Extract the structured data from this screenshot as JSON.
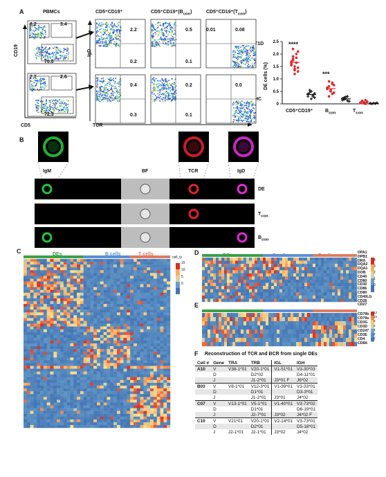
{
  "panels": {
    "a": "A",
    "b": "B",
    "c": "C",
    "d": "D",
    "e": "E",
    "f": "F"
  },
  "flow": {
    "pbmc_title": "PBMCs",
    "cd19_axis": "CD19",
    "cd5_axis": "CD5",
    "igd_axis": "IgD",
    "tcr_axis": "TCR",
    "col_titles": [
      "CD5⁺CD19⁺",
      "CD5⁺CD19⁺(B",
      "CD5⁺CD19⁺(T"
    ],
    "col_subs": [
      "",
      "con",
      ")",
      "con",
      ")"
    ],
    "row_labels": [
      "T1D",
      "HC"
    ],
    "pbmc_t1d": [
      "8.2",
      "3.4",
      "70.0"
    ],
    "pbmc_hc": [
      "7.7",
      "2.6",
      "72.3"
    ],
    "t1d_quads": [
      [
        "",
        "2.2",
        "0.2"
      ],
      [
        "",
        "0.5",
        "0.1"
      ],
      [
        "0.01",
        "0.08",
        ""
      ]
    ],
    "hc_quads": [
      [
        "",
        "0.4",
        "0.3"
      ],
      [
        "",
        "0.2",
        "0.1"
      ],
      [
        "",
        "0.0",
        ""
      ]
    ]
  },
  "scatter": {
    "ylabel": "DE cells (%)",
    "yticks": [
      "0",
      "0.5",
      "1.0",
      "1.5",
      "2.0",
      "2.5"
    ],
    "xcats": [
      "CD5⁺CD19⁺",
      "B",
      "T"
    ],
    "xsubs": [
      "con",
      "con"
    ],
    "sig": [
      "****",
      "***"
    ],
    "chart_data": {
      "type": "scatter",
      "ylim": [
        0,
        2.5
      ],
      "series": [
        {
          "group": "CD5+CD19+ T1D",
          "color": "#e0262a",
          "values": [
            1.6,
            1.8,
            1.5,
            2.0,
            1.3,
            1.7,
            1.9,
            1.4,
            1.65,
            2.1,
            1.55,
            1.75,
            1.2,
            1.85,
            1.45,
            1.6,
            2.2,
            1.35
          ]
        },
        {
          "group": "CD5+CD19+ HC",
          "color": "#111111",
          "values": [
            0.3,
            0.45,
            0.5,
            0.35,
            0.25,
            0.4,
            0.55,
            0.2,
            0.3,
            0.42
          ]
        },
        {
          "group": "Bcon T1D",
          "color": "#e0262a",
          "values": [
            0.6,
            0.7,
            0.5,
            0.8,
            0.45,
            0.65,
            0.9,
            0.55,
            0.4,
            0.75,
            0.6,
            0.3,
            0.5,
            0.85
          ]
        },
        {
          "group": "Bcon HC",
          "color": "#111111",
          "values": [
            0.15,
            0.25,
            0.2,
            0.3,
            0.1,
            0.22,
            0.18,
            0.28,
            0.12
          ]
        },
        {
          "group": "Tcon T1D",
          "color": "#e0262a",
          "values": [
            0.05,
            0.1,
            0.02,
            0.15,
            0.08,
            0.03,
            0.12,
            0.06,
            0.0,
            0.09,
            0.04
          ]
        },
        {
          "group": "Tcon HC",
          "color": "#111111",
          "values": [
            0.02,
            0.0,
            0.03,
            0.01,
            0.04,
            0.02
          ]
        }
      ]
    }
  },
  "imaging": {
    "top_labels": [
      "IgM",
      "BF",
      "TCR",
      "IgD"
    ],
    "row_labels": [
      "DE",
      "T",
      "B"
    ],
    "row_subs": [
      "",
      "con",
      "con"
    ]
  },
  "heat": {
    "groups": [
      "DEs",
      "B cells",
      "T cells"
    ],
    "c_legend_title": "cell_ty",
    "c_scale": [
      "15",
      "10",
      "5",
      "0"
    ],
    "d_scale": [
      "4",
      "3",
      "2",
      "1",
      "0"
    ],
    "e_scale": [
      "12",
      "10",
      "8",
      "6",
      "4",
      "2",
      "0"
    ],
    "d_genes": [
      "DPA1",
      "DPB1",
      "DRA",
      "DQA2",
      "DQA1",
      "DOB",
      "CD40",
      "CD80",
      "CD30",
      "CD86",
      "CD80",
      "CD40LG",
      "CD28",
      "CD27"
    ],
    "e_genes": [
      "CD79b",
      "CD79a",
      "CD3G",
      "CD3D",
      "CD247",
      "CD3E",
      "CD4",
      "CD8A"
    ]
  },
  "recon": {
    "title": "Reconstruction of TCR and BCR from single DEs",
    "headers": [
      "Cell #",
      "Gene",
      "TRA",
      "TRB",
      "IGL",
      "IGH"
    ],
    "rows": [
      [
        "A10",
        "V",
        "V38-1*01",
        "V20-1*01",
        "V1-51*01",
        "V3-30*03"
      ],
      [
        "",
        "D",
        "",
        "D2*02",
        "",
        "D4-11*01"
      ],
      [
        "",
        "J",
        "",
        "J1-2*01",
        "J3*01 F",
        "J6*02"
      ],
      [
        "B03",
        "V",
        "V8-1*01",
        "V12-3*01",
        "V1-39*01",
        "V3-33*01"
      ],
      [
        "",
        "D",
        "",
        "D1*01",
        "",
        "D3-3*01"
      ],
      [
        "",
        "J",
        "",
        "J1-2*01",
        "J3*01",
        "J4*02"
      ],
      [
        "C07",
        "V",
        "V13-1*01",
        "V5-1*01",
        "V1-40*01",
        "V3-73*02"
      ],
      [
        "",
        "D",
        "",
        "D1*01",
        "",
        "D6-19*01"
      ],
      [
        "",
        "J",
        "",
        "J2-7*01",
        "J3*02",
        "J4*02 F"
      ],
      [
        "C10",
        "V",
        "V21*01",
        "V20-1*01",
        "V2-14*01",
        "V3-73*01"
      ],
      [
        "",
        "D",
        "",
        "D2*01",
        "",
        "D5-18*01"
      ],
      [
        "",
        "J",
        "J2-1*01",
        "J2-1*01",
        "J3*02",
        "J4*02"
      ]
    ]
  }
}
